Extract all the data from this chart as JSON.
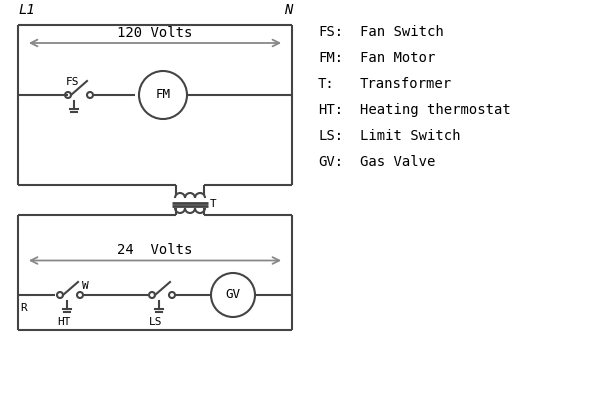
{
  "bg_color": "#ffffff",
  "line_color": "#444444",
  "arrow_color": "#888888",
  "text_color": "#000000",
  "legend": [
    [
      "FS:",
      "Fan Switch"
    ],
    [
      "FM:",
      "Fan Motor"
    ],
    [
      "T:",
      "Transformer"
    ],
    [
      "HT:",
      "Heating thermostat"
    ],
    [
      "LS:",
      "Limit Switch"
    ],
    [
      "GV:",
      "Gas Valve"
    ]
  ],
  "l1_label": "L1",
  "n_label": "N",
  "volts_120": "120 Volts",
  "volts_24": "24  Volts",
  "t_label": "T",
  "r_label": "R",
  "w_label": "W",
  "ht_label": "HT",
  "ls_label": "LS",
  "fs_label": "FS",
  "fm_label": "FM",
  "gv_label": "GV"
}
